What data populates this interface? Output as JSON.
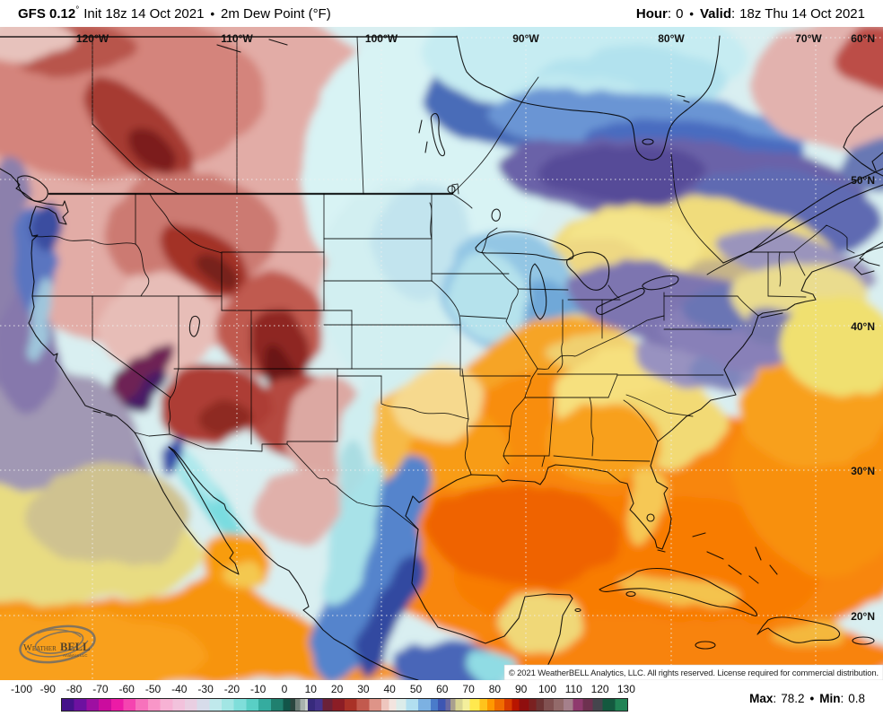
{
  "header": {
    "model": "GFS 0.12",
    "model_degree": "°",
    "init": "Init 18z 14 Oct 2021",
    "bullet": "•",
    "product": "2m Dew Point (°F)",
    "hour_label": "Hour",
    "colon": ":",
    "hour_value": "0",
    "valid_label": "Valid",
    "valid_value": "18z Thu 14 Oct 2021"
  },
  "map": {
    "meridian_labels": [
      "120°W",
      "110°W",
      "100°W",
      "90°W",
      "80°W",
      "70°W"
    ],
    "parallel_labels": [
      "60°N",
      "50°N",
      "40°N",
      "30°N",
      "20°N"
    ],
    "copyright": "© 2021 WeatherBELL Analytics, LLC. All rights reserved. License required for commercial distribution.",
    "logo": {
      "word_weather": "Weather",
      "word_bell": "BELL",
      "word_sub": "Analytics LLC"
    }
  },
  "colorbar": {
    "ticks": [
      "-100",
      "-90",
      "-80",
      "-70",
      "-60",
      "-50",
      "-40",
      "-30",
      "-20",
      "-10",
      "0",
      "10",
      "20",
      "30",
      "40",
      "50",
      "60",
      "70",
      "80",
      "90",
      "100",
      "110",
      "120",
      "130"
    ],
    "segments": [
      {
        "from": -100,
        "to": -95,
        "color": "#45128a"
      },
      {
        "from": -95,
        "to": -90,
        "color": "#6d11a0"
      },
      {
        "from": -90,
        "to": -85,
        "color": "#9e0fa2"
      },
      {
        "from": -85,
        "to": -80,
        "color": "#cb0c9e"
      },
      {
        "from": -80,
        "to": -75,
        "color": "#ec1ba6"
      },
      {
        "from": -75,
        "to": -70,
        "color": "#f544b0"
      },
      {
        "from": -70,
        "to": -65,
        "color": "#f772bc"
      },
      {
        "from": -65,
        "to": -60,
        "color": "#f996c8"
      },
      {
        "from": -60,
        "to": -55,
        "color": "#f7b2d4"
      },
      {
        "from": -55,
        "to": -50,
        "color": "#f2c2dc"
      },
      {
        "from": -50,
        "to": -45,
        "color": "#e9cfe2"
      },
      {
        "from": -45,
        "to": -40,
        "color": "#d7dcea"
      },
      {
        "from": -40,
        "to": -35,
        "color": "#c0e9ec"
      },
      {
        "from": -35,
        "to": -30,
        "color": "#a2e6e4"
      },
      {
        "from": -30,
        "to": -25,
        "color": "#7fdeda"
      },
      {
        "from": -25,
        "to": -20,
        "color": "#59cfc5"
      },
      {
        "from": -20,
        "to": -15,
        "color": "#35ac9f"
      },
      {
        "from": -15,
        "to": -10,
        "color": "#20806f"
      },
      {
        "from": -10,
        "to": -7,
        "color": "#125549"
      },
      {
        "from": -7,
        "to": -5,
        "color": "#2a463e"
      },
      {
        "from": -5,
        "to": -3,
        "color": "#6e7f78"
      },
      {
        "from": -3,
        "to": -1,
        "color": "#a9b3ae"
      },
      {
        "from": -1,
        "to": 0,
        "color": "#c9cec9"
      },
      {
        "from": 0,
        "to": 3,
        "color": "#372a7c"
      },
      {
        "from": 3,
        "to": 6,
        "color": "#45338b"
      },
      {
        "from": 6,
        "to": 10,
        "color": "#6b2138"
      },
      {
        "from": 10,
        "to": 15,
        "color": "#8c1d25"
      },
      {
        "from": 15,
        "to": 20,
        "color": "#a93127"
      },
      {
        "from": 20,
        "to": 25,
        "color": "#c25a4e"
      },
      {
        "from": 25,
        "to": 30,
        "color": "#de9488"
      },
      {
        "from": 30,
        "to": 33,
        "color": "#eec6be"
      },
      {
        "from": 33,
        "to": 36,
        "color": "#f3e4df"
      },
      {
        "from": 36,
        "to": 40,
        "color": "#dcecea"
      },
      {
        "from": 40,
        "to": 45,
        "color": "#b2dff0"
      },
      {
        "from": 45,
        "to": 50,
        "color": "#7cb1e2"
      },
      {
        "from": 50,
        "to": 53,
        "color": "#4a7bca"
      },
      {
        "from": 53,
        "to": 56,
        "color": "#3d56b2"
      },
      {
        "from": 56,
        "to": 58,
        "color": "#6a6aa2"
      },
      {
        "from": 58,
        "to": 60,
        "color": "#a89f8e"
      },
      {
        "from": 60,
        "to": 63,
        "color": "#d8d492"
      },
      {
        "from": 63,
        "to": 66,
        "color": "#f4ef9c"
      },
      {
        "from": 66,
        "to": 70,
        "color": "#ffe94e"
      },
      {
        "from": 70,
        "to": 73,
        "color": "#ffc31c"
      },
      {
        "from": 73,
        "to": 76,
        "color": "#ff9800"
      },
      {
        "from": 76,
        "to": 80,
        "color": "#f06c00"
      },
      {
        "from": 80,
        "to": 83,
        "color": "#d83c00"
      },
      {
        "from": 83,
        "to": 86,
        "color": "#b81500"
      },
      {
        "from": 86,
        "to": 90,
        "color": "#8f0e0e"
      },
      {
        "from": 90,
        "to": 93,
        "color": "#7a2121"
      },
      {
        "from": 93,
        "to": 96,
        "color": "#6d3434"
      },
      {
        "from": 96,
        "to": 100,
        "color": "#815151"
      },
      {
        "from": 100,
        "to": 104,
        "color": "#936a6a"
      },
      {
        "from": 104,
        "to": 108,
        "color": "#a5808b"
      },
      {
        "from": 108,
        "to": 112,
        "color": "#8f3a6e"
      },
      {
        "from": 112,
        "to": 116,
        "color": "#6e3150"
      },
      {
        "from": 116,
        "to": 120,
        "color": "#45454d"
      },
      {
        "from": 120,
        "to": 125,
        "color": "#14593f"
      },
      {
        "from": 125,
        "to": 130,
        "color": "#218355"
      }
    ]
  },
  "stats": {
    "max_label": "Max",
    "colon": ":",
    "max_value": "78.2",
    "bullet": "•",
    "min_label": "Min",
    "min_value": "0.8"
  }
}
